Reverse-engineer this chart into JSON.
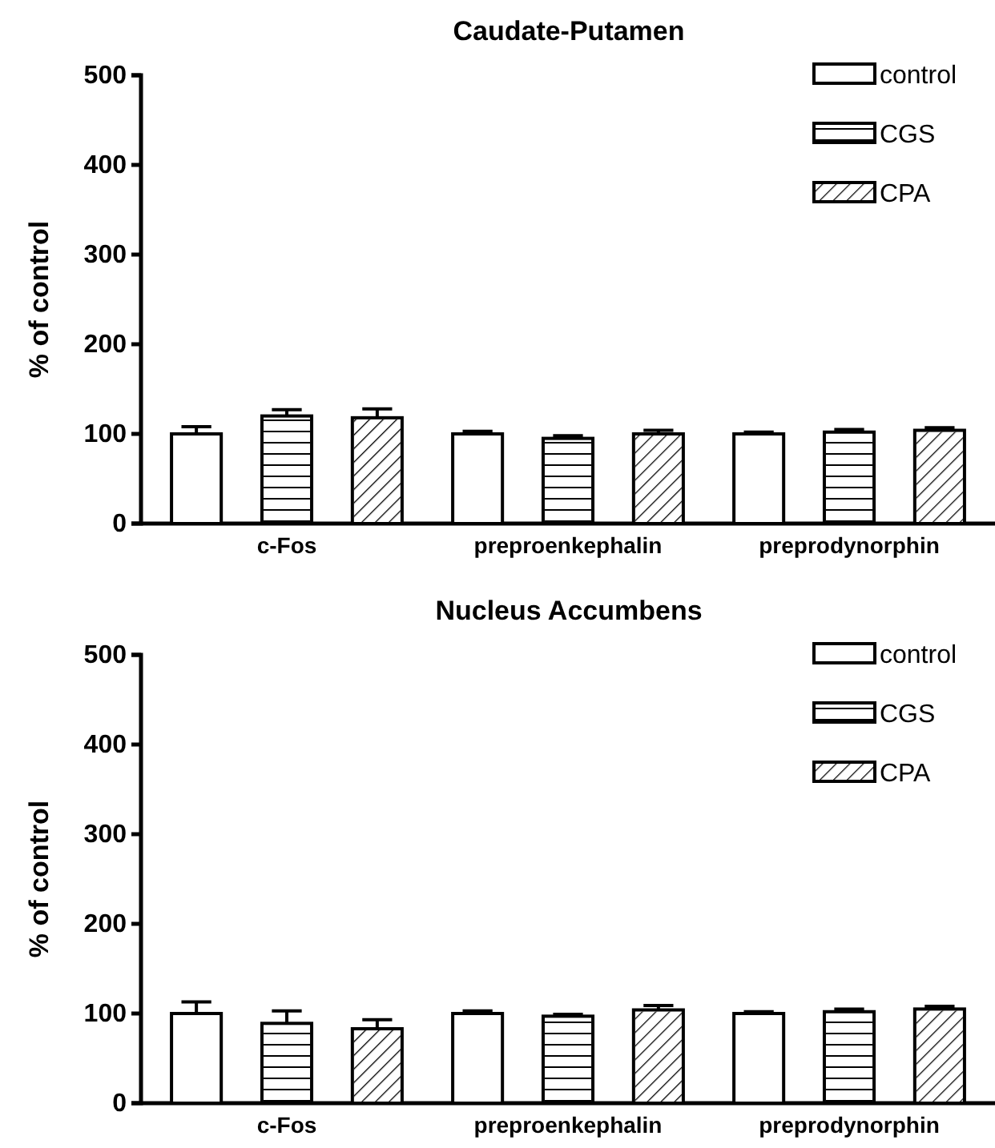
{
  "chart_data": [
    {
      "type": "bar",
      "title": "Caudate-Putamen",
      "ylabel": "% of control",
      "categories": [
        "c-Fos",
        "preproenkephalin",
        "preprodynorphin"
      ],
      "ylim": [
        0,
        500
      ],
      "yticks": [
        0,
        100,
        200,
        300,
        400,
        500
      ],
      "legend": "top right",
      "grid": false,
      "series": [
        {
          "name": "control",
          "color": "#ffffff",
          "values": [
            100,
            100,
            100
          ],
          "errors": [
            8,
            3,
            2
          ]
        },
        {
          "name": "CGS",
          "color": "#ffffff",
          "values": [
            120,
            95,
            102
          ],
          "errors": [
            7,
            3,
            3
          ]
        },
        {
          "name": "CPA",
          "color": "#ffffff",
          "values": [
            118,
            100,
            104
          ],
          "errors": [
            10,
            4,
            3
          ]
        }
      ]
    },
    {
      "type": "bar",
      "title": "Nucleus Accumbens",
      "ylabel": "% of control",
      "categories": [
        "c-Fos",
        "preproenkephalin",
        "preprodynorphin"
      ],
      "ylim": [
        0,
        500
      ],
      "yticks": [
        0,
        100,
        200,
        300,
        400,
        500
      ],
      "legend": "top right",
      "grid": false,
      "series": [
        {
          "name": "control",
          "color": "#ffffff",
          "values": [
            100,
            100,
            100
          ],
          "errors": [
            13,
            3,
            2
          ]
        },
        {
          "name": "CGS",
          "color": "#ffffff",
          "values": [
            89,
            97,
            102
          ],
          "errors": [
            14,
            2,
            3
          ]
        },
        {
          "name": "CPA",
          "color": "#ffffff",
          "values": [
            83,
            104,
            105
          ],
          "errors": [
            10,
            5,
            3
          ]
        }
      ]
    }
  ]
}
